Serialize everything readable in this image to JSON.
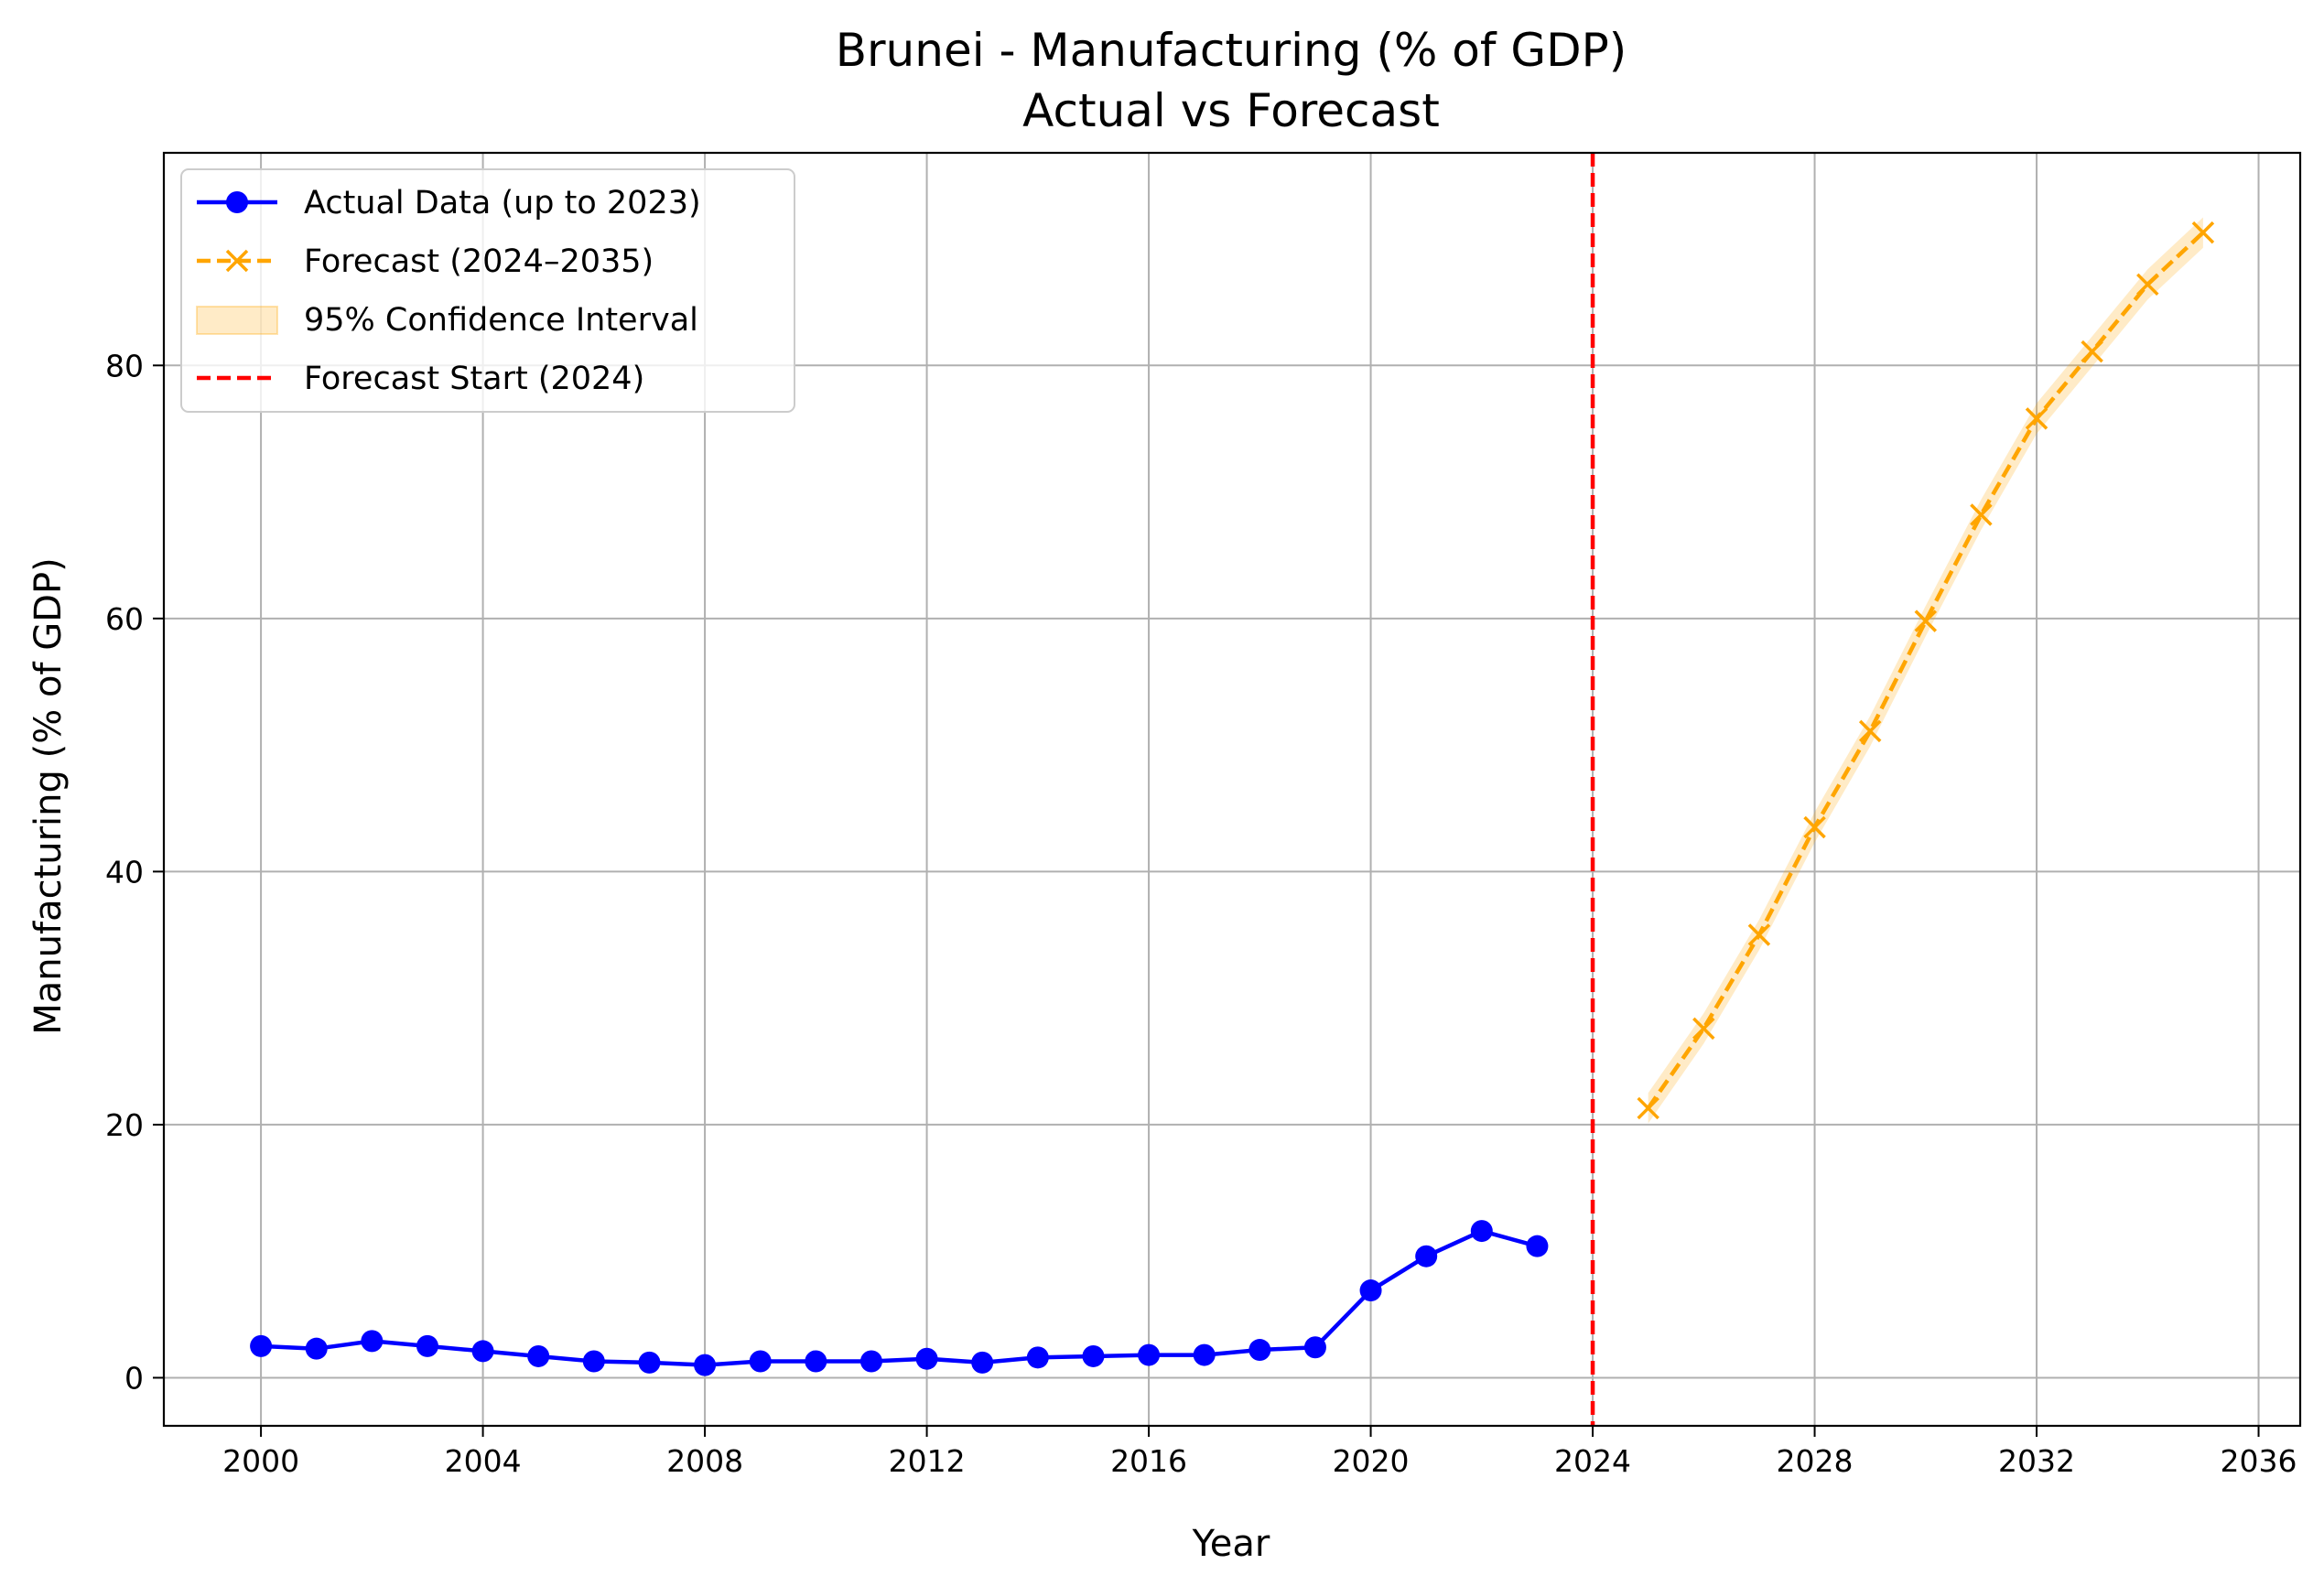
{
  "chart_data": {
    "type": "line",
    "title": "Brunei - Manufacturing (% of GDP)",
    "subtitle": "Actual vs Forecast",
    "xlabel": "Year",
    "ylabel": "Manufacturing (% of GDP)",
    "xlim": [
      1998.25,
      2036.75
    ],
    "ylim": [
      -3.8,
      96.8
    ],
    "xticks": [
      2000,
      2004,
      2008,
      2012,
      2016,
      2020,
      2024,
      2028,
      2032,
      2036
    ],
    "yticks": [
      0,
      20,
      40,
      60,
      80
    ],
    "grid": true,
    "legend_position": "top-left",
    "series": [
      {
        "name": "Actual Data (up to 2023)",
        "color": "#0000ff",
        "style": "solid",
        "marker": "circle",
        "x": [
          2000,
          2001,
          2002,
          2003,
          2004,
          2005,
          2006,
          2007,
          2008,
          2009,
          2010,
          2011,
          2012,
          2013,
          2014,
          2015,
          2016,
          2017,
          2018,
          2019,
          2020,
          2021,
          2022,
          2023
        ],
        "y": [
          2.5,
          2.3,
          2.9,
          2.5,
          2.1,
          1.7,
          1.3,
          1.2,
          1.0,
          1.3,
          1.3,
          1.3,
          1.5,
          1.2,
          1.6,
          1.7,
          1.8,
          1.8,
          2.2,
          2.4,
          6.9,
          9.6,
          11.6,
          10.4
        ]
      },
      {
        "name": "Forecast (2024–2035)",
        "color": "#ffa500",
        "style": "dashed",
        "marker": "x",
        "x": [
          2025,
          2026,
          2027,
          2028,
          2029,
          2030,
          2031,
          2032,
          2033,
          2034,
          2035
        ],
        "y": [
          21.3,
          27.6,
          35.0,
          43.5,
          51.1,
          59.8,
          68.2,
          75.8,
          81.1,
          86.4,
          90.5
        ]
      }
    ],
    "confidence_interval": {
      "name": "95% Confidence Interval",
      "color": "#ffa500",
      "x": [
        2025,
        2026,
        2027,
        2028,
        2029,
        2030,
        2031,
        2032,
        2033,
        2034,
        2035
      ],
      "lower": [
        20.1,
        26.4,
        33.8,
        42.3,
        49.9,
        58.6,
        67.0,
        74.6,
        79.9,
        85.2,
        89.3
      ],
      "upper": [
        22.5,
        28.8,
        36.2,
        44.7,
        52.3,
        61.0,
        69.4,
        77.0,
        82.3,
        87.6,
        91.7
      ]
    },
    "forecast_start": {
      "name": "Forecast Start (2024)",
      "x": 2024,
      "color": "#ff0000",
      "style": "dashed"
    }
  }
}
